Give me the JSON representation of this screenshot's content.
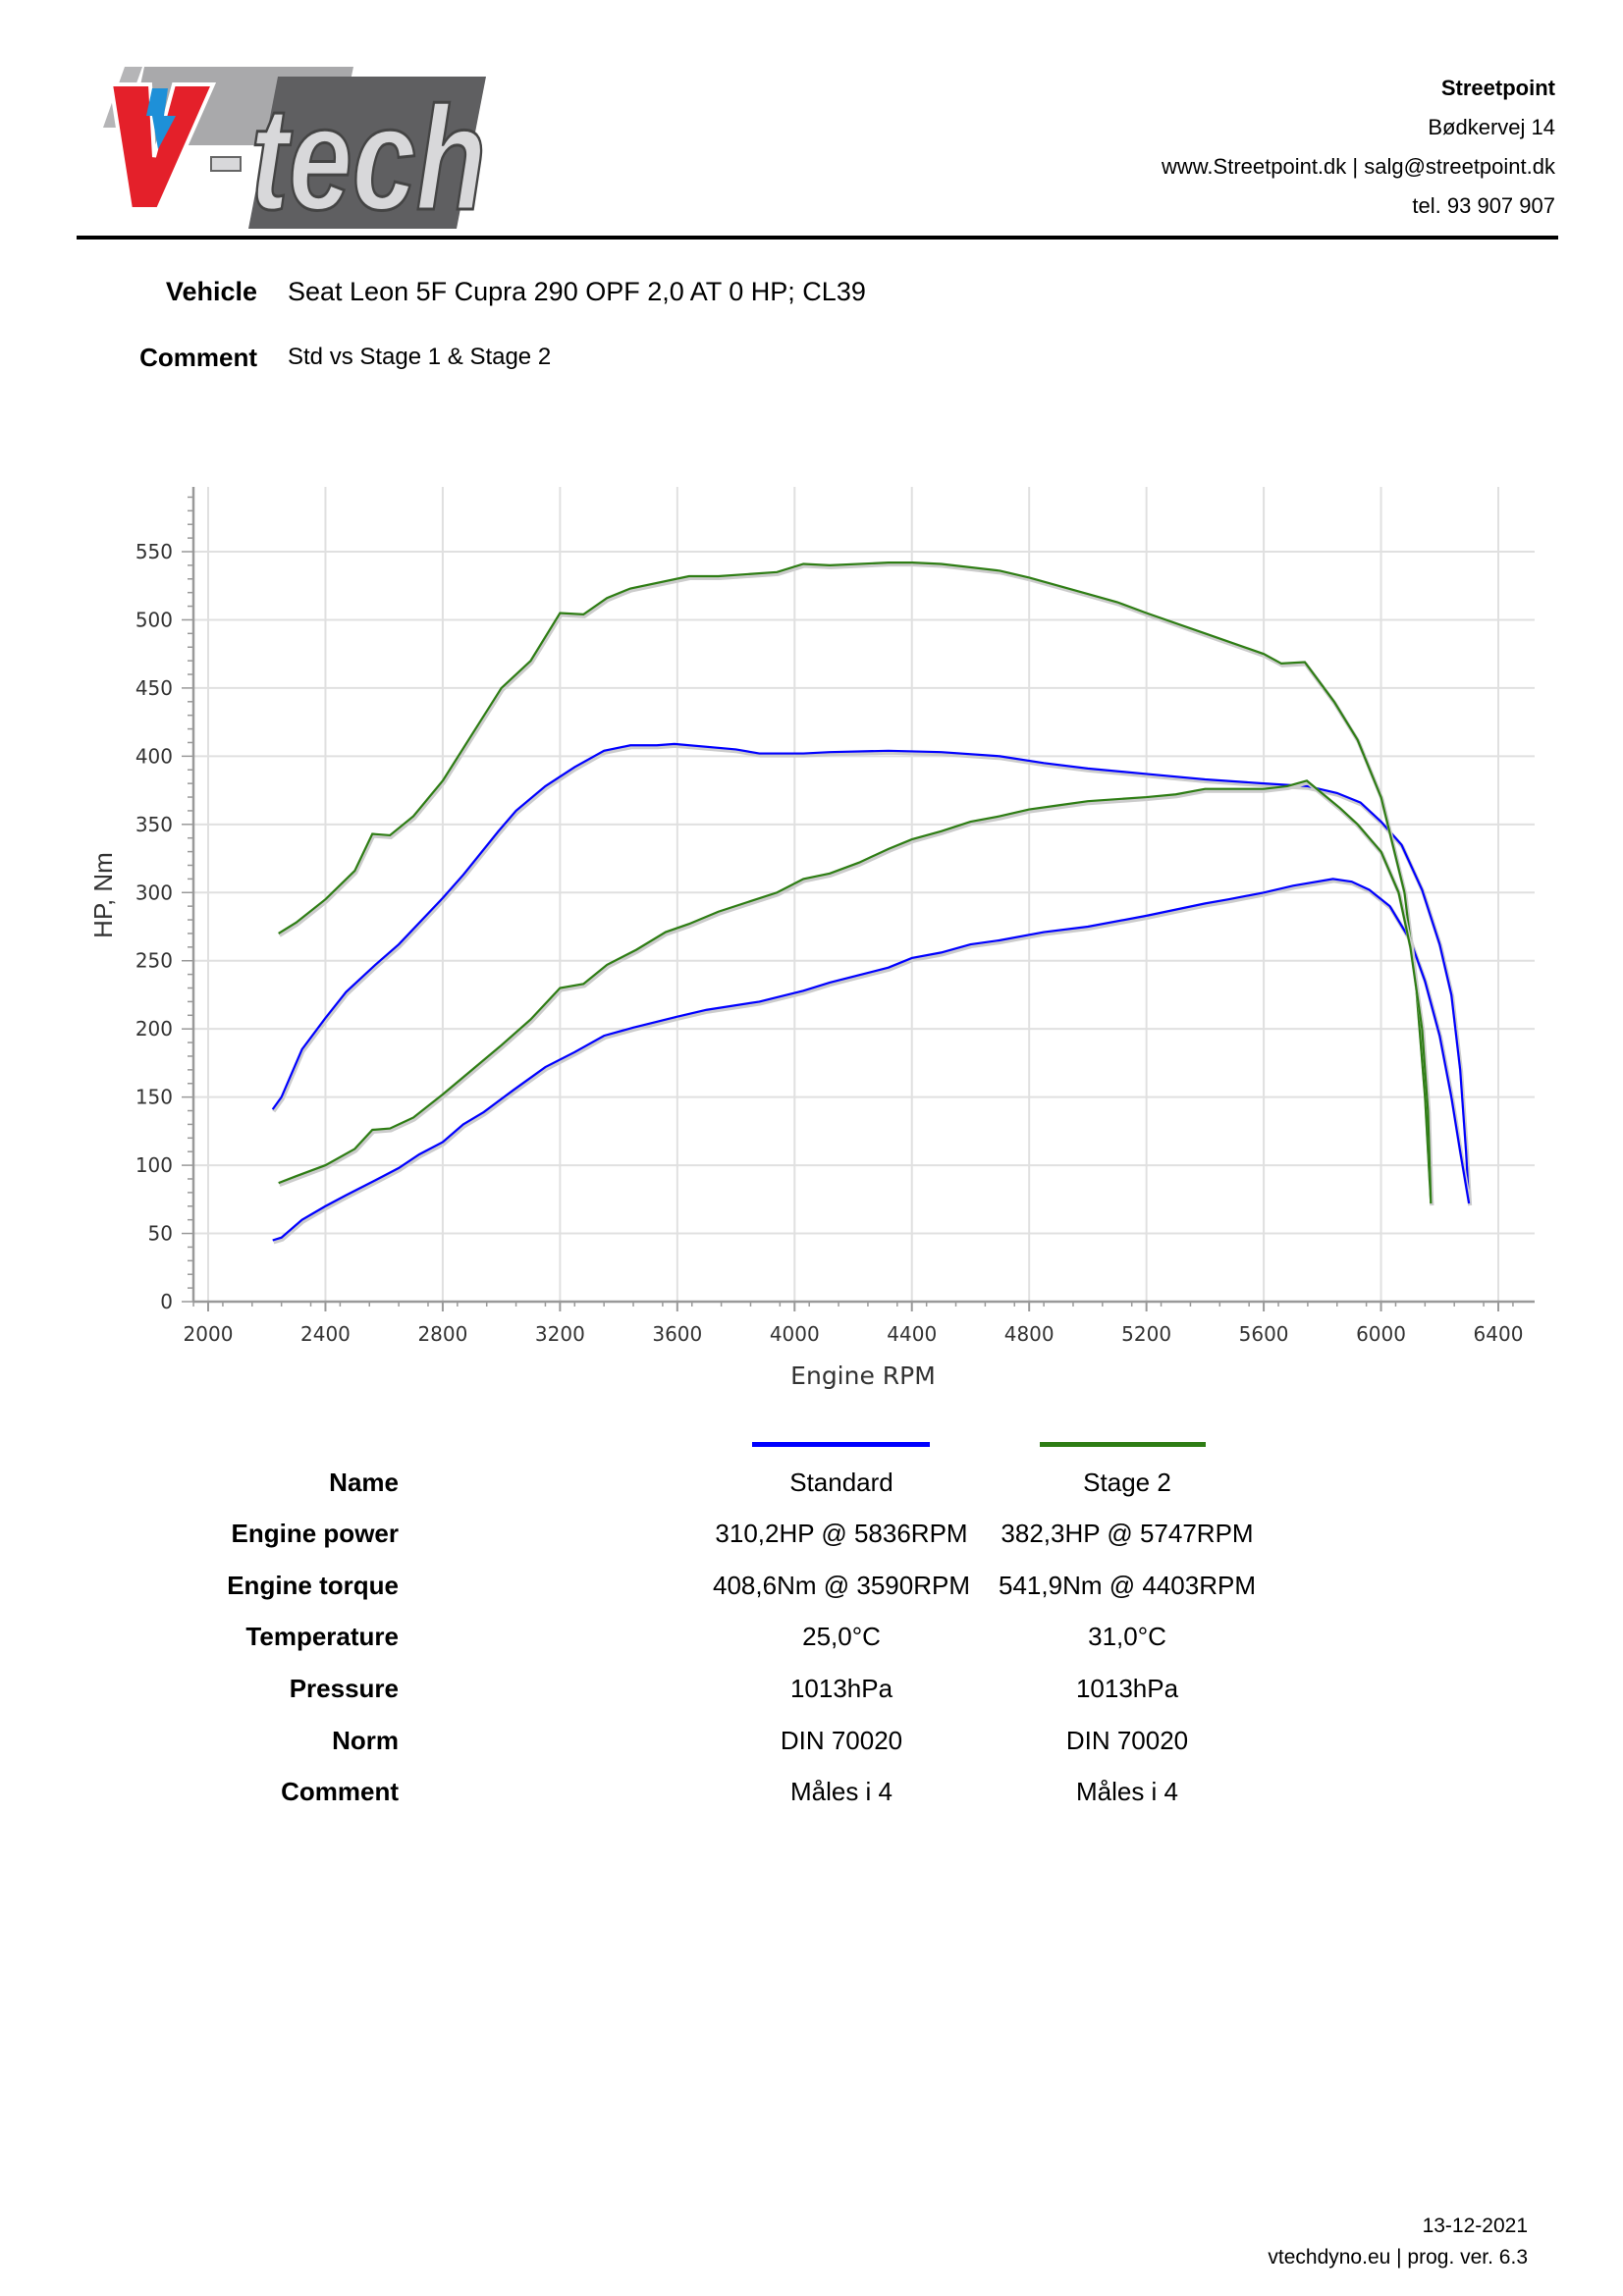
{
  "header": {
    "logo_text": "V-tech",
    "company": "Streetpoint",
    "address": "Bødkervej 14",
    "web_mail": "www.Streetpoint.dk | salg@streetpoint.dk",
    "phone": "tel. 93 907 907"
  },
  "info": {
    "vehicle_label": "Vehicle",
    "vehicle_value": "Seat Leon 5F Cupra 290 OPF 2,0 AT 0 HP; CL39",
    "comment_label": "Comment",
    "comment_value": "Std vs Stage 1 & Stage 2"
  },
  "chart_data": {
    "type": "line",
    "title": "",
    "xlabel": "Engine RPM",
    "ylabel": "HP, Nm",
    "xlim": [
      1950,
      6520
    ],
    "ylim": [
      0,
      600
    ],
    "xticks": [
      2000,
      2400,
      2800,
      3200,
      3600,
      4000,
      4400,
      4800,
      5200,
      5600,
      6000,
      6400
    ],
    "yticks": [
      0,
      50,
      100,
      150,
      200,
      250,
      300,
      350,
      400,
      450,
      500,
      550
    ],
    "grid": true,
    "series": [
      {
        "name": "Standard",
        "quantity": "torque",
        "color": "#0000ff",
        "points": [
          [
            2220,
            141
          ],
          [
            2250,
            150
          ],
          [
            2320,
            185
          ],
          [
            2400,
            208
          ],
          [
            2470,
            227
          ],
          [
            2570,
            247
          ],
          [
            2650,
            262
          ],
          [
            2800,
            296
          ],
          [
            2870,
            313
          ],
          [
            2990,
            345
          ],
          [
            3050,
            360
          ],
          [
            3150,
            378
          ],
          [
            3250,
            392
          ],
          [
            3350,
            404
          ],
          [
            3440,
            408
          ],
          [
            3530,
            408
          ],
          [
            3590,
            409
          ],
          [
            3800,
            405
          ],
          [
            3880,
            402
          ],
          [
            4030,
            402
          ],
          [
            4120,
            403
          ],
          [
            4320,
            404
          ],
          [
            4500,
            403
          ],
          [
            4700,
            400
          ],
          [
            4850,
            395
          ],
          [
            5000,
            391
          ],
          [
            5200,
            387
          ],
          [
            5400,
            383
          ],
          [
            5600,
            380
          ],
          [
            5750,
            378
          ],
          [
            5850,
            373
          ],
          [
            5930,
            366
          ],
          [
            6000,
            352
          ],
          [
            6070,
            335
          ],
          [
            6140,
            302
          ],
          [
            6200,
            262
          ],
          [
            6240,
            225
          ],
          [
            6270,
            170
          ],
          [
            6290,
            110
          ],
          [
            6300,
            72
          ]
        ]
      },
      {
        "name": "Standard",
        "quantity": "power",
        "color": "#0000ff",
        "points": [
          [
            2220,
            45
          ],
          [
            2250,
            47
          ],
          [
            2320,
            60
          ],
          [
            2400,
            70
          ],
          [
            2470,
            78
          ],
          [
            2570,
            89
          ],
          [
            2650,
            98
          ],
          [
            2720,
            108
          ],
          [
            2800,
            117
          ],
          [
            2870,
            130
          ],
          [
            2940,
            139
          ],
          [
            3040,
            155
          ],
          [
            3150,
            172
          ],
          [
            3250,
            183
          ],
          [
            3350,
            195
          ],
          [
            3450,
            201
          ],
          [
            3600,
            209
          ],
          [
            3700,
            214
          ],
          [
            3880,
            220
          ],
          [
            4030,
            228
          ],
          [
            4120,
            234
          ],
          [
            4320,
            245
          ],
          [
            4400,
            252
          ],
          [
            4500,
            256
          ],
          [
            4600,
            262
          ],
          [
            4700,
            265
          ],
          [
            4850,
            271
          ],
          [
            5000,
            275
          ],
          [
            5200,
            283
          ],
          [
            5400,
            292
          ],
          [
            5480,
            295
          ],
          [
            5600,
            300
          ],
          [
            5700,
            305
          ],
          [
            5836,
            310
          ],
          [
            5900,
            308
          ],
          [
            5960,
            302
          ],
          [
            6030,
            290
          ],
          [
            6100,
            265
          ],
          [
            6150,
            235
          ],
          [
            6200,
            195
          ],
          [
            6240,
            150
          ],
          [
            6270,
            110
          ],
          [
            6300,
            72
          ]
        ]
      },
      {
        "name": "Stage 2",
        "quantity": "torque",
        "color": "#2e7d14",
        "points": [
          [
            2240,
            270
          ],
          [
            2300,
            278
          ],
          [
            2400,
            295
          ],
          [
            2500,
            316
          ],
          [
            2560,
            343
          ],
          [
            2620,
            342
          ],
          [
            2700,
            356
          ],
          [
            2800,
            382
          ],
          [
            3000,
            450
          ],
          [
            3100,
            470
          ],
          [
            3200,
            505
          ],
          [
            3280,
            504
          ],
          [
            3360,
            516
          ],
          [
            3440,
            523
          ],
          [
            3640,
            532
          ],
          [
            3740,
            532
          ],
          [
            3940,
            535
          ],
          [
            4030,
            541
          ],
          [
            4120,
            540
          ],
          [
            4320,
            542
          ],
          [
            4403,
            542
          ],
          [
            4500,
            541
          ],
          [
            4700,
            536
          ],
          [
            4800,
            531
          ],
          [
            5000,
            519
          ],
          [
            5100,
            513
          ],
          [
            5200,
            505
          ],
          [
            5400,
            490
          ],
          [
            5600,
            475
          ],
          [
            5660,
            468
          ],
          [
            5740,
            469
          ],
          [
            5840,
            440
          ],
          [
            5920,
            412
          ],
          [
            6000,
            370
          ],
          [
            6080,
            300
          ],
          [
            6120,
            230
          ],
          [
            6150,
            150
          ],
          [
            6170,
            72
          ]
        ]
      },
      {
        "name": "Stage 2",
        "quantity": "power",
        "color": "#2e7d14",
        "points": [
          [
            2240,
            87
          ],
          [
            2300,
            92
          ],
          [
            2400,
            100
          ],
          [
            2500,
            112
          ],
          [
            2560,
            126
          ],
          [
            2620,
            127
          ],
          [
            2700,
            135
          ],
          [
            2800,
            152
          ],
          [
            2900,
            170
          ],
          [
            3000,
            188
          ],
          [
            3100,
            207
          ],
          [
            3200,
            230
          ],
          [
            3280,
            233
          ],
          [
            3360,
            247
          ],
          [
            3460,
            258
          ],
          [
            3560,
            271
          ],
          [
            3640,
            277
          ],
          [
            3740,
            286
          ],
          [
            3940,
            300
          ],
          [
            4030,
            310
          ],
          [
            4120,
            314
          ],
          [
            4220,
            322
          ],
          [
            4320,
            332
          ],
          [
            4400,
            339
          ],
          [
            4500,
            345
          ],
          [
            4600,
            352
          ],
          [
            4700,
            356
          ],
          [
            4800,
            361
          ],
          [
            4900,
            364
          ],
          [
            5000,
            367
          ],
          [
            5200,
            370
          ],
          [
            5300,
            372
          ],
          [
            5400,
            376
          ],
          [
            5600,
            376
          ],
          [
            5680,
            378
          ],
          [
            5747,
            382
          ],
          [
            5860,
            362
          ],
          [
            5920,
            350
          ],
          [
            6000,
            330
          ],
          [
            6060,
            300
          ],
          [
            6100,
            260
          ],
          [
            6140,
            200
          ],
          [
            6160,
            140
          ],
          [
            6170,
            72
          ]
        ]
      }
    ]
  },
  "legend": [
    {
      "name": "Standard",
      "color": "#0000ff"
    },
    {
      "name": "Stage 2",
      "color": "#2e7d14"
    }
  ],
  "table": {
    "rows": [
      {
        "label": "Name",
        "v1": "Standard",
        "v2": "Stage 2"
      },
      {
        "label": "Engine power",
        "v1": "310,2HP @ 5836RPM",
        "v2": "382,3HP @ 5747RPM"
      },
      {
        "label": "Engine torque",
        "v1": "408,6Nm @ 3590RPM",
        "v2": "541,9Nm @ 4403RPM"
      },
      {
        "label": "Temperature",
        "v1": "25,0°C",
        "v2": "31,0°C"
      },
      {
        "label": "Pressure",
        "v1": "1013hPa",
        "v2": "1013hPa"
      },
      {
        "label": "Norm",
        "v1": "DIN 70020",
        "v2": "DIN 70020"
      },
      {
        "label": "Comment",
        "v1": "Måles i 4",
        "v2": "Måles i 4"
      }
    ]
  },
  "footer": {
    "date": "13-12-2021",
    "credit": "vtechdyno.eu | prog. ver. 6.3"
  }
}
